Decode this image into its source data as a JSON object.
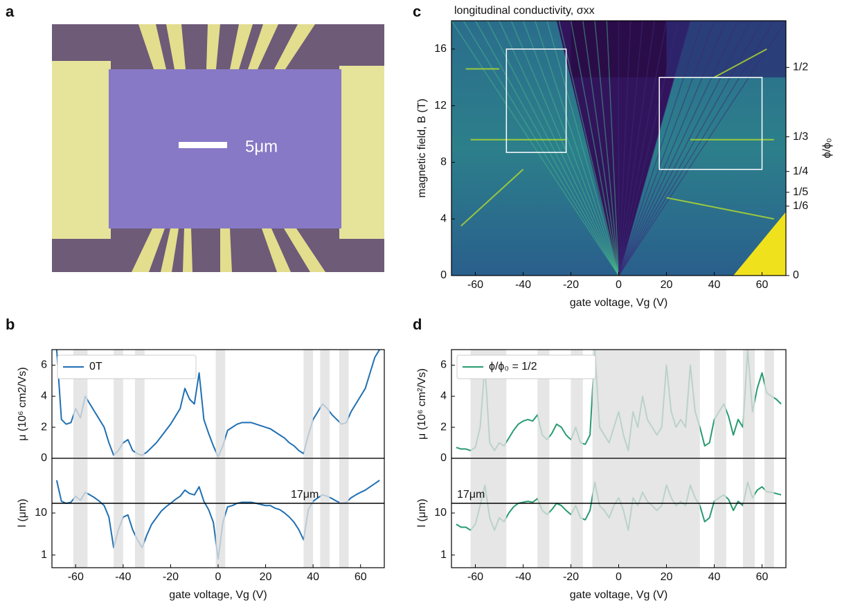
{
  "panel_labels": [
    "a",
    "b",
    "c",
    "d"
  ],
  "micrograph": {
    "scale_label": "5μm"
  },
  "chart_data": [
    {
      "type": "heatmap",
      "title": "longitudinal conductivity, σxx",
      "xlabel": "gate voltage, Vg (V)",
      "ylabel": "magnetic field, B (T)",
      "y2label": "ϕ/ϕ₀",
      "xlim": [
        -70,
        70
      ],
      "xticks": [
        -60,
        -40,
        -20,
        0,
        20,
        40,
        60
      ],
      "ylim": [
        0,
        18
      ],
      "yticks": [
        0,
        4,
        8,
        12,
        16
      ],
      "y2lim": [
        0,
        0.612
      ],
      "y2ticks": [
        0,
        {
          "value": 0.1667,
          "label": "1/6"
        },
        {
          "value": 0.2,
          "label": "1/5"
        },
        {
          "value": 0.25,
          "label": "1/4"
        },
        {
          "value": 0.3333,
          "label": "1/3"
        },
        {
          "value": 0.5,
          "label": "1/2"
        }
      ],
      "boxes": [
        {
          "x": [
            -47,
            -22
          ],
          "y": [
            8.7,
            16
          ]
        },
        {
          "x": [
            17,
            60
          ],
          "y": [
            7.5,
            14
          ]
        }
      ]
    },
    {
      "type": "line",
      "ylabel": "μ (10⁶ cm2/Vs)",
      "xlim": [
        -70,
        70
      ],
      "ylim": [
        0,
        7
      ],
      "yticks": [
        0,
        2,
        4,
        6
      ],
      "legend": "upper left",
      "shaded": [
        [
          -61,
          -55
        ],
        [
          -44,
          -40
        ],
        [
          -35,
          -31
        ],
        [
          -1,
          3
        ],
        [
          36,
          40
        ],
        [
          43,
          47
        ],
        [
          51,
          55
        ]
      ],
      "x": [
        -68,
        -66,
        -64,
        -62,
        -60,
        -58,
        -56,
        -54,
        -52,
        -50,
        -48,
        -46,
        -44,
        -42,
        -40,
        -38,
        -36,
        -34,
        -32,
        -30,
        -28,
        -26,
        -24,
        -22,
        -20,
        -18,
        -16,
        -14,
        -12,
        -10,
        -8,
        -6,
        -4,
        -2,
        0,
        2,
        4,
        6,
        8,
        10,
        12,
        14,
        16,
        18,
        20,
        22,
        24,
        26,
        28,
        30,
        32,
        34,
        36,
        38,
        40,
        42,
        44,
        46,
        48,
        50,
        52,
        54,
        56,
        58,
        60,
        62,
        64,
        66,
        68
      ],
      "series": [
        {
          "name": "0T",
          "color": "#1f6fb2",
          "values": [
            7,
            2.5,
            2.2,
            2.3,
            3.2,
            2.6,
            4,
            3.5,
            3,
            2.5,
            2,
            1,
            0.2,
            0.5,
            1,
            1.2,
            0.5,
            0.3,
            0.2,
            0.4,
            0.7,
            1,
            1.4,
            1.8,
            2.2,
            2.7,
            3.2,
            4.5,
            3.8,
            3.5,
            5.5,
            2.5,
            1.6,
            0.8,
            0.1,
            0.8,
            1.8,
            2,
            2.2,
            2.3,
            2.3,
            2.3,
            2.2,
            2.1,
            2,
            1.9,
            1.7,
            1.5,
            1.3,
            1,
            0.8,
            0.5,
            0.3,
            1.5,
            2.5,
            3,
            3.5,
            3.2,
            2.8,
            2.5,
            2.2,
            2.3,
            3,
            3.5,
            4,
            4.5,
            5.5,
            6.5,
            7
          ]
        }
      ]
    },
    {
      "type": "line",
      "log": true,
      "xlabel": "gate voltage, Vg (V)",
      "ylabel": "l (μm)",
      "xlim": [
        -70,
        70
      ],
      "xticks": [
        -60,
        -40,
        -20,
        0,
        20,
        40,
        60
      ],
      "ylim": [
        0.5,
        200
      ],
      "yticks": [
        1,
        10
      ],
      "hline": {
        "value": 17,
        "label": "17μm"
      },
      "shaded": [
        [
          -61,
          -55
        ],
        [
          -44,
          -40
        ],
        [
          -35,
          -31
        ],
        [
          -1,
          3
        ],
        [
          36,
          40
        ],
        [
          43,
          47
        ],
        [
          51,
          55
        ]
      ],
      "x": [
        -68,
        -66,
        -64,
        -62,
        -60,
        -58,
        -56,
        -54,
        -52,
        -50,
        -48,
        -46,
        -44,
        -42,
        -40,
        -38,
        -36,
        -34,
        -32,
        -30,
        -28,
        -26,
        -24,
        -22,
        -20,
        -18,
        -16,
        -14,
        -12,
        -10,
        -8,
        -6,
        -4,
        -2,
        0,
        2,
        4,
        6,
        8,
        10,
        12,
        14,
        16,
        18,
        20,
        22,
        24,
        26,
        28,
        30,
        32,
        34,
        36,
        38,
        40,
        42,
        44,
        46,
        48,
        50,
        52,
        54,
        56,
        58,
        60,
        62,
        64,
        66,
        68
      ],
      "series": [
        {
          "color": "#1f6fb2",
          "values": [
            60,
            19,
            17,
            18,
            25,
            20,
            31,
            27,
            23,
            19,
            15,
            8,
            1.5,
            4,
            8,
            9,
            4,
            2.3,
            1.5,
            3,
            5.4,
            7.7,
            11,
            14,
            17,
            21,
            25,
            35,
            29,
            27,
            42,
            19,
            12,
            6,
            0.8,
            6,
            14,
            15,
            17,
            18,
            18,
            18,
            17,
            16,
            15,
            15,
            13,
            12,
            10,
            8,
            6,
            4,
            2.3,
            12,
            19,
            23,
            27,
            25,
            22,
            19,
            17,
            18,
            23,
            27,
            31,
            35,
            42,
            50,
            60
          ]
        }
      ]
    },
    {
      "type": "line",
      "ylabel": "μ (10⁶ cm²/Vs)",
      "xlim": [
        -70,
        70
      ],
      "ylim": [
        0,
        7
      ],
      "yticks": [
        0,
        2,
        4,
        6
      ],
      "legend": "upper left",
      "shaded": [
        [
          -62,
          -47
        ],
        [
          -34,
          -29
        ],
        [
          -20,
          -15
        ],
        [
          -11,
          34
        ],
        [
          40,
          45
        ],
        [
          52,
          57
        ],
        [
          61,
          65
        ]
      ],
      "x": [
        -68,
        -66,
        -64,
        -62,
        -60,
        -58,
        -56,
        -54,
        -52,
        -50,
        -48,
        -46,
        -44,
        -42,
        -40,
        -38,
        -36,
        -34,
        -32,
        -30,
        -28,
        -26,
        -24,
        -22,
        -20,
        -18,
        -16,
        -14,
        -12,
        -10,
        -8,
        -6,
        -4,
        -2,
        0,
        2,
        4,
        6,
        8,
        10,
        12,
        14,
        16,
        18,
        20,
        22,
        24,
        26,
        28,
        30,
        32,
        34,
        36,
        38,
        40,
        42,
        44,
        46,
        48,
        50,
        52,
        54,
        56,
        58,
        60,
        62,
        64,
        66,
        68
      ],
      "series": [
        {
          "name": "ϕ/ϕ₀ = 1/2",
          "color": "#279a6e",
          "values": [
            0.7,
            0.6,
            0.6,
            0.5,
            0.7,
            2,
            6,
            1,
            0.5,
            1,
            0.8,
            1.3,
            1.8,
            2.2,
            2.4,
            2.5,
            2.4,
            2.8,
            1.5,
            1.2,
            1.6,
            2.2,
            2,
            1.5,
            1.2,
            2,
            1,
            0.9,
            1.5,
            7,
            2,
            1.5,
            1,
            2,
            3,
            1.5,
            0.5,
            3,
            2,
            4,
            2.5,
            2,
            1.5,
            2,
            6,
            3,
            2,
            2.5,
            2,
            6,
            3,
            2,
            0.8,
            1,
            2.5,
            3,
            3.5,
            2.7,
            1.5,
            2.5,
            2,
            7,
            3,
            4.5,
            5.5,
            4.2,
            4,
            3.8,
            3.5
          ]
        }
      ]
    },
    {
      "type": "line",
      "log": true,
      "xlabel": "gate voltage, Vg (V)",
      "ylabel": "l (μm)",
      "xlim": [
        -70,
        70
      ],
      "xticks": [
        -60,
        -40,
        -20,
        0,
        20,
        40,
        60
      ],
      "ylim": [
        0.5,
        200
      ],
      "yticks": [
        1,
        10
      ],
      "hline": {
        "value": 17,
        "label": "17μm"
      },
      "shaded": [
        [
          -62,
          -47
        ],
        [
          -34,
          -29
        ],
        [
          -20,
          -15
        ],
        [
          -11,
          34
        ],
        [
          40,
          45
        ],
        [
          52,
          57
        ],
        [
          61,
          65
        ]
      ],
      "x": [
        -68,
        -66,
        -64,
        -62,
        -60,
        -58,
        -56,
        -54,
        -52,
        -50,
        -48,
        -46,
        -44,
        -42,
        -40,
        -38,
        -36,
        -34,
        -32,
        -30,
        -28,
        -26,
        -24,
        -22,
        -20,
        -18,
        -16,
        -14,
        -12,
        -10,
        -8,
        -6,
        -4,
        -2,
        0,
        2,
        4,
        6,
        8,
        10,
        12,
        14,
        16,
        18,
        20,
        22,
        24,
        26,
        28,
        30,
        32,
        34,
        36,
        38,
        40,
        42,
        44,
        46,
        48,
        50,
        52,
        54,
        56,
        58,
        60,
        62,
        64,
        66,
        68
      ],
      "series": [
        {
          "color": "#279a6e",
          "values": [
            5.4,
            4.6,
            4.6,
            3.9,
            5.4,
            15,
            46,
            7.7,
            3.9,
            7.7,
            6.2,
            10,
            14,
            17,
            18,
            19,
            18,
            22,
            11.5,
            9.2,
            12,
            17,
            15,
            11.5,
            9.2,
            15,
            7.7,
            6.9,
            11.5,
            54,
            15,
            11.5,
            7.7,
            15,
            23,
            11.5,
            3.9,
            23,
            15,
            31,
            19,
            15,
            11.5,
            15,
            46,
            23,
            15,
            19,
            15,
            46,
            23,
            15,
            6.2,
            7.7,
            19,
            23,
            27,
            21,
            11.5,
            19,
            15,
            54,
            23,
            35,
            42,
            32,
            31,
            29,
            27
          ]
        }
      ]
    }
  ]
}
